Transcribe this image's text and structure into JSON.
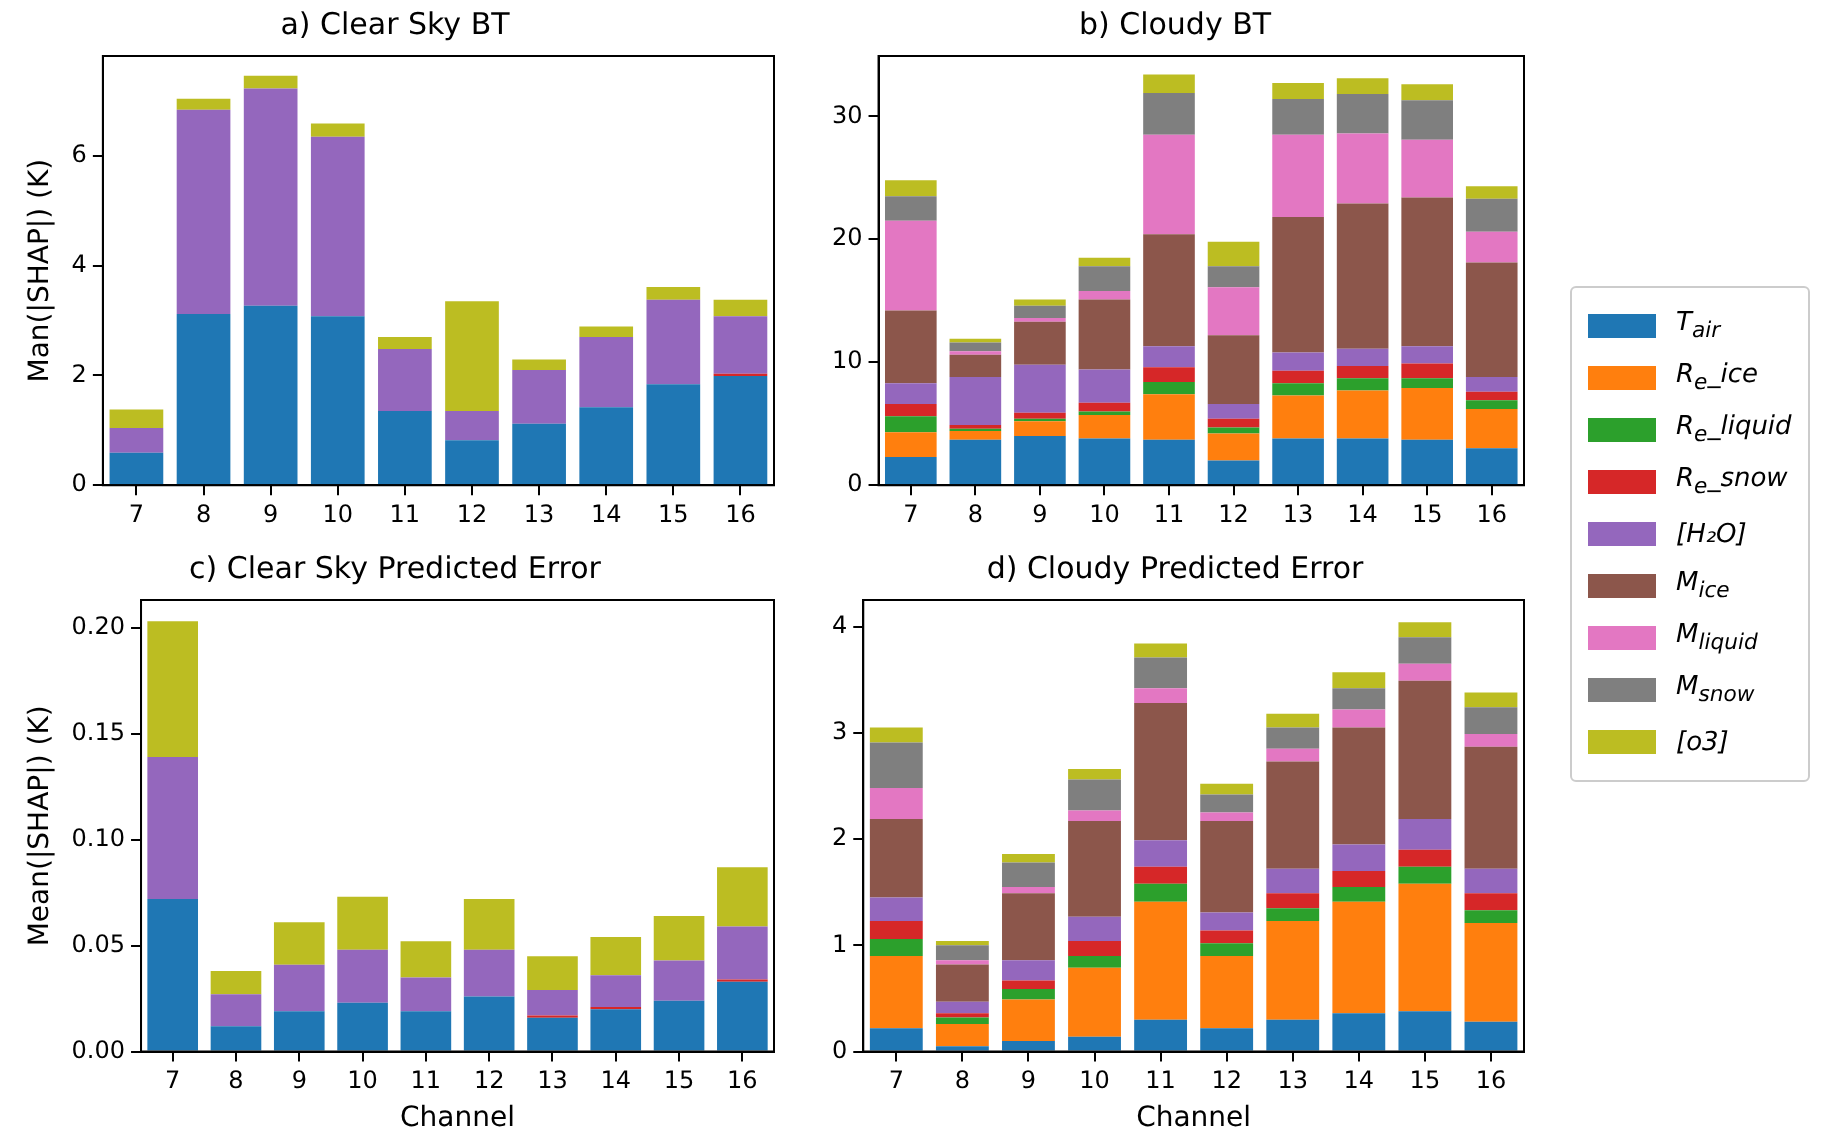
{
  "chart_data": [
    {
      "type": "bar",
      "stacked": true,
      "title": "a) Clear Sky BT",
      "ylabel": "Man(|SHAP|) (K)",
      "categories": [
        "7",
        "8",
        "9",
        "10",
        "11",
        "12",
        "13",
        "14",
        "15",
        "16"
      ],
      "ylim": [
        0,
        7.82
      ],
      "yticks": [
        0,
        2,
        4,
        6
      ],
      "grid": false,
      "legend": "right",
      "series": [
        {
          "name": "T$_{air}$",
          "color": "#1f77b4",
          "values": [
            0.59,
            3.12,
            3.27,
            3.08,
            1.35,
            0.82,
            1.12,
            1.42,
            1.84,
            1.99
          ]
        },
        {
          "name": "R$_{e}$_snow",
          "color": "#d62728",
          "values": [
            0,
            0,
            0,
            0,
            0,
            0,
            0,
            0,
            0,
            0.04
          ]
        },
        {
          "name": "[H₂O]",
          "color": "#9467bd",
          "values": [
            0.45,
            3.72,
            3.96,
            3.27,
            1.13,
            0.53,
            0.98,
            1.28,
            1.54,
            1.05
          ]
        },
        {
          "name": "[o3]",
          "color": "#bcbd22",
          "values": [
            0.34,
            0.2,
            0.23,
            0.24,
            0.22,
            2.0,
            0.19,
            0.19,
            0.23,
            0.3
          ]
        }
      ]
    },
    {
      "type": "bar",
      "stacked": true,
      "title": "b) Cloudy BT",
      "categories": [
        "7",
        "8",
        "9",
        "10",
        "11",
        "12",
        "13",
        "14",
        "15",
        "16"
      ],
      "ylim": [
        0,
        34.9
      ],
      "yticks": [
        0,
        10,
        20,
        30
      ],
      "grid": false,
      "legend": "right",
      "series": [
        {
          "name": "T$_{air}$",
          "color": "#1f77b4",
          "values": [
            2.3,
            3.7,
            4.0,
            3.8,
            3.7,
            2.0,
            3.8,
            3.8,
            3.7,
            3.0
          ]
        },
        {
          "name": "R$_{e}$_ice",
          "color": "#ff7f0e",
          "values": [
            2.0,
            0.7,
            1.2,
            1.9,
            3.7,
            2.2,
            3.5,
            3.9,
            4.2,
            3.2
          ]
        },
        {
          "name": "R$_{e}$_liquid",
          "color": "#2ca02c",
          "values": [
            1.3,
            0.2,
            0.2,
            0.3,
            1.0,
            0.5,
            1.0,
            1.0,
            0.8,
            0.7
          ]
        },
        {
          "name": "R$_{e}$_snow",
          "color": "#d62728",
          "values": [
            1.0,
            0.3,
            0.5,
            0.7,
            1.2,
            0.7,
            1.0,
            1.0,
            1.2,
            0.7
          ]
        },
        {
          "name": "[H₂O]",
          "color": "#9467bd",
          "values": [
            1.7,
            3.9,
            3.9,
            2.7,
            1.7,
            1.2,
            1.5,
            1.4,
            1.4,
            1.2
          ]
        },
        {
          "name": "M$_{ice}$",
          "color": "#8c564b",
          "values": [
            5.9,
            1.8,
            3.5,
            5.7,
            9.1,
            5.6,
            11.0,
            11.8,
            12.1,
            9.3
          ]
        },
        {
          "name": "M$_{liquid}$",
          "color": "#e377c2",
          "values": [
            7.3,
            0.3,
            0.3,
            0.7,
            8.1,
            3.9,
            6.7,
            5.7,
            4.7,
            2.5
          ]
        },
        {
          "name": "M$_{snow}$",
          "color": "#7f7f7f",
          "values": [
            2.0,
            0.7,
            1.0,
            2.0,
            3.4,
            1.7,
            2.9,
            3.2,
            3.2,
            2.7
          ]
        },
        {
          "name": "[o3]",
          "color": "#bcbd22",
          "values": [
            1.3,
            0.3,
            0.5,
            0.7,
            1.5,
            2.0,
            1.3,
            1.3,
            1.3,
            1.0
          ]
        }
      ]
    },
    {
      "type": "bar",
      "stacked": true,
      "title": "c) Clear Sky Predicted Error",
      "xlabel": "Channel",
      "ylabel": "Mean(|SHAP|) (K)",
      "categories": [
        "7",
        "8",
        "9",
        "10",
        "11",
        "12",
        "13",
        "14",
        "15",
        "16"
      ],
      "ylim": [
        0,
        0.213
      ],
      "yticks": [
        {
          "value": 0,
          "label": "0.00"
        },
        {
          "value": 0.05,
          "label": "0.05"
        },
        {
          "value": 0.1,
          "label": "0.10"
        },
        {
          "value": 0.15,
          "label": "0.15"
        },
        {
          "value": 0.2,
          "label": "0.20"
        }
      ],
      "grid": false,
      "legend": "right",
      "series": [
        {
          "name": "T$_{air}$",
          "color": "#1f77b4",
          "values": [
            0.072,
            0.012,
            0.019,
            0.023,
            0.019,
            0.026,
            0.016,
            0.02,
            0.024,
            0.033
          ]
        },
        {
          "name": "R$_{e}$_snow",
          "color": "#d62728",
          "values": [
            0,
            0,
            0,
            0,
            0,
            0,
            0.001,
            0.001,
            0,
            0.001
          ]
        },
        {
          "name": "[H₂O]",
          "color": "#9467bd",
          "values": [
            0.067,
            0.015,
            0.022,
            0.025,
            0.016,
            0.022,
            0.012,
            0.015,
            0.019,
            0.025
          ]
        },
        {
          "name": "[o3]",
          "color": "#bcbd22",
          "values": [
            0.064,
            0.011,
            0.02,
            0.025,
            0.017,
            0.024,
            0.016,
            0.018,
            0.021,
            0.028
          ]
        }
      ]
    },
    {
      "type": "bar",
      "stacked": true,
      "title": "d) Cloudy Predicted Error",
      "xlabel": "Channel",
      "categories": [
        "7",
        "8",
        "9",
        "10",
        "11",
        "12",
        "13",
        "14",
        "15",
        "16"
      ],
      "ylim": [
        0,
        4.25
      ],
      "yticks": [
        0,
        1,
        2,
        3,
        4
      ],
      "grid": false,
      "legend": "right",
      "series": [
        {
          "name": "T$_{air}$",
          "color": "#1f77b4",
          "values": [
            0.22,
            0.05,
            0.1,
            0.14,
            0.3,
            0.22,
            0.3,
            0.36,
            0.38,
            0.28
          ]
        },
        {
          "name": "R$_{e}$_ice",
          "color": "#ff7f0e",
          "values": [
            0.68,
            0.21,
            0.39,
            0.65,
            1.11,
            0.68,
            0.93,
            1.05,
            1.2,
            0.93
          ]
        },
        {
          "name": "R$_{e}$_liquid",
          "color": "#2ca02c",
          "values": [
            0.16,
            0.06,
            0.1,
            0.11,
            0.17,
            0.12,
            0.12,
            0.14,
            0.16,
            0.12
          ]
        },
        {
          "name": "R$_{e}$_snow",
          "color": "#d62728",
          "values": [
            0.17,
            0.04,
            0.08,
            0.14,
            0.16,
            0.12,
            0.14,
            0.15,
            0.16,
            0.16
          ]
        },
        {
          "name": "[H₂O]",
          "color": "#9467bd",
          "values": [
            0.22,
            0.11,
            0.19,
            0.23,
            0.25,
            0.17,
            0.23,
            0.25,
            0.29,
            0.23
          ]
        },
        {
          "name": "M$_{ice}$",
          "color": "#8c564b",
          "values": [
            0.74,
            0.35,
            0.63,
            0.9,
            1.29,
            0.86,
            1.01,
            1.1,
            1.3,
            1.15
          ]
        },
        {
          "name": "M$_{liquid}$",
          "color": "#e377c2",
          "values": [
            0.29,
            0.04,
            0.06,
            0.1,
            0.14,
            0.08,
            0.12,
            0.17,
            0.16,
            0.12
          ]
        },
        {
          "name": "M$_{snow}$",
          "color": "#7f7f7f",
          "values": [
            0.43,
            0.14,
            0.23,
            0.29,
            0.29,
            0.17,
            0.2,
            0.2,
            0.25,
            0.25
          ]
        },
        {
          "name": "[o3]",
          "color": "#bcbd22",
          "values": [
            0.14,
            0.04,
            0.08,
            0.1,
            0.13,
            0.1,
            0.13,
            0.15,
            0.14,
            0.14
          ]
        }
      ]
    }
  ]
}
